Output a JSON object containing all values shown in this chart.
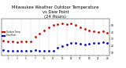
{
  "title": "Milwaukee Weather Outdoor Temperature\nvs Dew Point\n(24 Hours)",
  "title_fontsize": 3.8,
  "bg_color": "#ffffff",
  "temp_color": "#cc0000",
  "dew_color": "#0000cc",
  "grid_color": "#888888",
  "hours": [
    0,
    1,
    2,
    3,
    4,
    5,
    6,
    7,
    8,
    9,
    10,
    11,
    12,
    13,
    14,
    15,
    16,
    17,
    18,
    19,
    20,
    21,
    22,
    23
  ],
  "temp_values": [
    28,
    27,
    26,
    25,
    26,
    26,
    27,
    33,
    38,
    43,
    47,
    51,
    52,
    53,
    52,
    53,
    51,
    48,
    45,
    43,
    42,
    41,
    42,
    39
  ],
  "dew_values": [
    14,
    13,
    12,
    12,
    12,
    12,
    13,
    14,
    13,
    13,
    13,
    12,
    17,
    20,
    22,
    24,
    24,
    23,
    22,
    23,
    24,
    24,
    25,
    24
  ],
  "ylim": [
    5,
    60
  ],
  "yticks": [
    10,
    20,
    30,
    40,
    50
  ],
  "ytick_labels": [
    "10",
    "20",
    "30",
    "40",
    "50"
  ],
  "vline_positions": [
    2,
    4,
    6,
    8,
    10,
    12,
    14,
    16,
    18,
    20,
    22
  ],
  "legend_temp": "Outdoor Temp",
  "legend_dew": "Dew Point",
  "marker_size": 1.0,
  "figsize": [
    1.6,
    0.87
  ],
  "dpi": 100
}
